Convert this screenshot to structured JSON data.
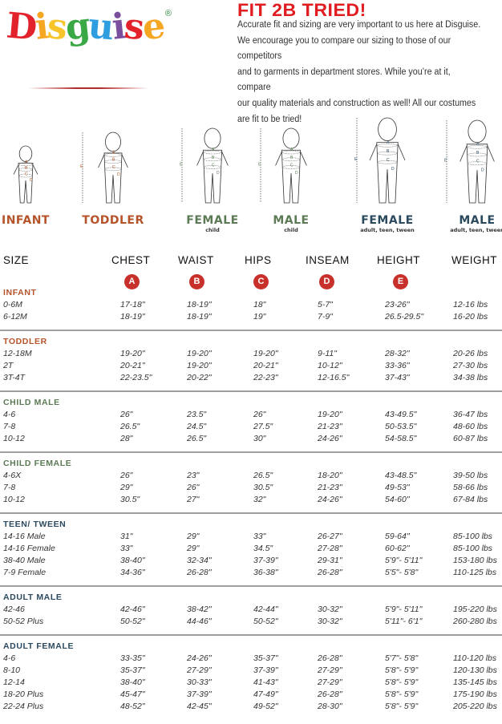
{
  "logo": {
    "text": "Disguise",
    "letters": [
      "D",
      "i",
      "s",
      "g",
      "u",
      "i",
      "s",
      "e"
    ],
    "letter_colors": [
      "#e3232b",
      "#f5a623",
      "#f7c52b",
      "#3aa845",
      "#2f9ee0",
      "#7a4f9e",
      "#e3232b",
      "#f5a623"
    ],
    "registered": "®"
  },
  "title": "FIT 2B TRIED!",
  "intro": "Accurate fit and sizing are very important to us here at Disguise.\nWe encourage you to compare our sizing to those of our competitors\nand to garments in department stores. While you’re at it, compare\nour quality materials and construction as well! All our costumes\nare fit to be tried!",
  "colors": {
    "infant_toddler": "#b5532a",
    "child": "#5b7a55",
    "adult": "#2b4a5e",
    "badge": "#c8312b",
    "title": "#e01d22"
  },
  "figures": [
    {
      "label": "INFANT",
      "sub": "",
      "group": "infant_toddler"
    },
    {
      "label": "TODDLER",
      "sub": "",
      "group": "infant_toddler"
    },
    {
      "label": "FEMALE",
      "sub": "child",
      "group": "child"
    },
    {
      "label": "MALE",
      "sub": "child",
      "group": "child"
    },
    {
      "label": "FEMALE",
      "sub": "adult, teen, tween",
      "group": "adult"
    },
    {
      "label": "MALE",
      "sub": "adult, teen, tween",
      "group": "adult"
    }
  ],
  "figure_marks": {
    "height": "E",
    "parts": [
      "A",
      "B",
      "C",
      "D"
    ]
  },
  "columns": [
    "SIZE",
    "CHEST",
    "WAIST",
    "HIPS",
    "INSEAM",
    "HEIGHT",
    "WEIGHT"
  ],
  "badges": [
    "A",
    "B",
    "C",
    "D",
    "E"
  ],
  "sections": [
    {
      "label": "INFANT",
      "group": "infant_toddler",
      "rows": [
        [
          "0-6M",
          "17-18\"",
          "18-19\"",
          "18\"",
          "5-7\"",
          "23-26\"",
          "12-16 lbs"
        ],
        [
          "6-12M",
          "18-19\"",
          "18-19\"",
          "19\"",
          "7-9\"",
          "26.5-29.5\"",
          "16-20 lbs"
        ]
      ]
    },
    {
      "label": "TODDLER",
      "group": "infant_toddler",
      "rows": [
        [
          "12-18M",
          "19-20\"",
          "19-20\"",
          "19-20\"",
          "9-11\"",
          "28-32\"",
          "20-26 lbs"
        ],
        [
          "2T",
          "20-21\"",
          "19-20\"",
          "20-21\"",
          "10-12\"",
          "33-36\"",
          "27-30 lbs"
        ],
        [
          "3T-4T",
          "22-23.5\"",
          "20-22\"",
          "22-23\"",
          "12-16.5\"",
          "37-43\"",
          "34-38 lbs"
        ]
      ]
    },
    {
      "label": "CHILD MALE",
      "group": "child",
      "rows": [
        [
          "4-6",
          "26\"",
          "23.5\"",
          "26\"",
          "19-20\"",
          "43-49.5\"",
          "36-47 lbs"
        ],
        [
          "7-8",
          "26.5\"",
          "24.5\"",
          "27.5\"",
          "21-23\"",
          "50-53.5\"",
          "48-60 lbs"
        ],
        [
          "10-12",
          "28\"",
          "26.5\"",
          "30\"",
          "24-26\"",
          "54-58.5\"",
          "60-87 lbs"
        ]
      ]
    },
    {
      "label": "CHILD FEMALE",
      "group": "child",
      "rows": [
        [
          "4-6X",
          "26\"",
          "23\"",
          "26.5\"",
          "18-20\"",
          "43-48.5\"",
          "39-50 lbs"
        ],
        [
          "7-8",
          "29\"",
          "26\"",
          "30.5\"",
          "21-23\"",
          "49-53\"",
          "58-66 lbs"
        ],
        [
          "10-12",
          "30.5\"",
          "27\"",
          "32\"",
          "24-26\"",
          "54-60\"",
          "67-84 lbs"
        ]
      ]
    },
    {
      "label": "TEEN/ TWEEN",
      "group": "adult",
      "rows": [
        [
          "14-16 Male",
          "31\"",
          "29\"",
          "33\"",
          "26-27\"",
          "59-64\"",
          "85-100 lbs"
        ],
        [
          "14-16 Female",
          "33\"",
          "29\"",
          "34.5\"",
          "27-28\"",
          "60-62\"",
          "85-100 lbs"
        ],
        [
          "38-40 Male",
          "38-40\"",
          "32-34\"",
          "37-39\"",
          "29-31\"",
          "5'9\"- 5'11\"",
          "153-180 lbs"
        ],
        [
          "7-9 Female",
          "34-36\"",
          "26-28\"",
          "36-38\"",
          "26-28\"",
          "5'5\"- 5'8\"",
          "110-125 lbs"
        ]
      ]
    },
    {
      "label": "ADULT MALE",
      "group": "adult",
      "rows": [
        [
          "42-46",
          "42-46\"",
          "38-42\"",
          "42-44\"",
          "30-32\"",
          "5'9\"- 5'11\"",
          "195-220 lbs"
        ],
        [
          "50-52 Plus",
          "50-52\"",
          "44-46\"",
          "50-52\"",
          "30-32\"",
          "5'11\"- 6'1\"",
          "260-280 lbs"
        ]
      ]
    },
    {
      "label": "ADULT FEMALE",
      "group": "adult",
      "rows": [
        [
          "4-6",
          "33-35\"",
          "24-26\"",
          "35-37\"",
          "26-28\"",
          "5'7\"- 5'8\"",
          "110-120 lbs"
        ],
        [
          "8-10",
          "35-37\"",
          "27-29\"",
          "37-39\"",
          "27-29\"",
          "5'8\"- 5'9\"",
          "120-130 lbs"
        ],
        [
          "12-14",
          "38-40\"",
          "30-33\"",
          "41-43\"",
          "27-29\"",
          "5'8\"- 5'9\"",
          "135-145 lbs"
        ],
        [
          "18-20 Plus",
          "45-47\"",
          "37-39\"",
          "47-49\"",
          "26-28\"",
          "5'8\"- 5'9\"",
          "175-190 lbs"
        ],
        [
          "22-24 Plus",
          "48-52\"",
          "42-45\"",
          "49-52\"",
          "28-30\"",
          "5'8\"- 5'9\"",
          "205-220 lbs"
        ]
      ]
    }
  ]
}
